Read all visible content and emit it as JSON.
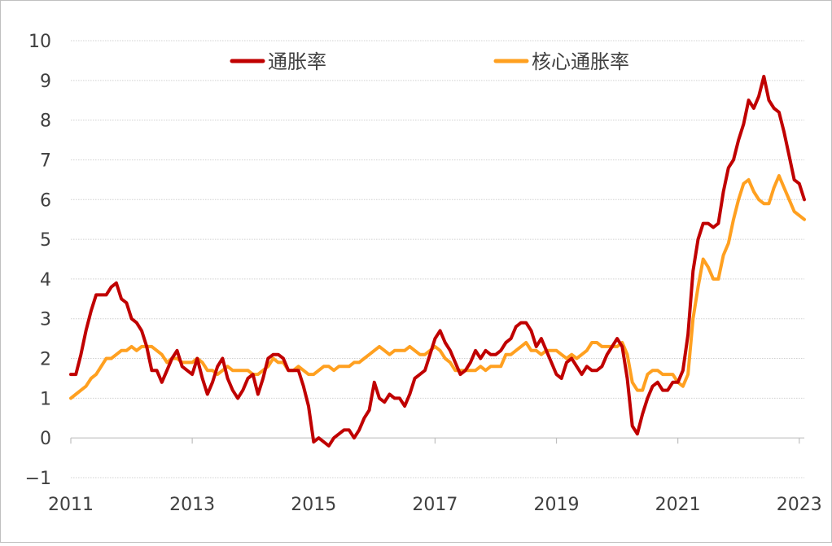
{
  "chart_data": {
    "type": "line",
    "x_ticks": [
      "2011",
      "2013",
      "2015",
      "2017",
      "2019",
      "2021",
      "2023"
    ],
    "y_ticks": [
      "−1",
      "0",
      "1",
      "2",
      "3",
      "4",
      "5",
      "6",
      "7",
      "8",
      "9",
      "10"
    ],
    "ylim": [
      -1,
      10
    ],
    "grid": "horizontal",
    "legend_position": "top",
    "series": [
      {
        "name": "通胀率",
        "color": "#c00000",
        "values": [
          1.6,
          1.6,
          2.1,
          2.7,
          3.2,
          3.6,
          3.6,
          3.6,
          3.8,
          3.9,
          3.5,
          3.4,
          3.0,
          2.9,
          2.7,
          2.3,
          1.7,
          1.7,
          1.4,
          1.7,
          2.0,
          2.2,
          1.8,
          1.7,
          1.6,
          2.0,
          1.5,
          1.1,
          1.4,
          1.8,
          2.0,
          1.5,
          1.2,
          1.0,
          1.2,
          1.5,
          1.6,
          1.1,
          1.5,
          2.0,
          2.1,
          2.1,
          2.0,
          1.7,
          1.7,
          1.7,
          1.3,
          0.8,
          -0.1,
          0.0,
          -0.1,
          -0.2,
          0.0,
          0.1,
          0.2,
          0.2,
          0.0,
          0.2,
          0.5,
          0.7,
          1.4,
          1.0,
          0.9,
          1.1,
          1.0,
          1.0,
          0.8,
          1.1,
          1.5,
          1.6,
          1.7,
          2.1,
          2.5,
          2.7,
          2.4,
          2.2,
          1.9,
          1.6,
          1.7,
          1.9,
          2.2,
          2.0,
          2.2,
          2.1,
          2.1,
          2.2,
          2.4,
          2.5,
          2.8,
          2.9,
          2.9,
          2.7,
          2.3,
          2.5,
          2.2,
          1.9,
          1.6,
          1.5,
          1.9,
          2.0,
          1.8,
          1.6,
          1.8,
          1.7,
          1.7,
          1.8,
          2.1,
          2.3,
          2.5,
          2.3,
          1.5,
          0.3,
          0.1,
          0.6,
          1.0,
          1.3,
          1.4,
          1.2,
          1.2,
          1.4,
          1.4,
          1.7,
          2.6,
          4.2,
          5.0,
          5.4,
          5.4,
          5.3,
          5.4,
          6.2,
          6.8,
          7.0,
          7.5,
          7.9,
          8.5,
          8.3,
          8.6,
          9.1,
          8.5,
          8.3,
          8.2,
          7.7,
          7.1,
          6.5,
          6.4,
          6.0
        ],
        "label": "通胀率"
      },
      {
        "name": "核心通胀率",
        "color": "#ffa020",
        "values": [
          1.0,
          1.1,
          1.2,
          1.3,
          1.5,
          1.6,
          1.8,
          2.0,
          2.0,
          2.1,
          2.2,
          2.2,
          2.3,
          2.2,
          2.3,
          2.3,
          2.3,
          2.2,
          2.1,
          1.9,
          2.0,
          2.0,
          1.9,
          1.9,
          1.9,
          2.0,
          1.9,
          1.7,
          1.7,
          1.6,
          1.7,
          1.8,
          1.7,
          1.7,
          1.7,
          1.7,
          1.6,
          1.6,
          1.7,
          1.8,
          2.0,
          1.9,
          1.9,
          1.7,
          1.7,
          1.8,
          1.7,
          1.6,
          1.6,
          1.7,
          1.8,
          1.8,
          1.7,
          1.8,
          1.8,
          1.8,
          1.9,
          1.9,
          2.0,
          2.1,
          2.2,
          2.3,
          2.2,
          2.1,
          2.2,
          2.2,
          2.2,
          2.3,
          2.2,
          2.1,
          2.1,
          2.2,
          2.3,
          2.2,
          2.0,
          1.9,
          1.7,
          1.7,
          1.7,
          1.7,
          1.7,
          1.8,
          1.7,
          1.8,
          1.8,
          1.8,
          2.1,
          2.1,
          2.2,
          2.3,
          2.4,
          2.2,
          2.2,
          2.1,
          2.2,
          2.2,
          2.2,
          2.1,
          2.0,
          2.1,
          2.0,
          2.1,
          2.2,
          2.4,
          2.4,
          2.3,
          2.3,
          2.3,
          2.3,
          2.4,
          2.1,
          1.4,
          1.2,
          1.2,
          1.6,
          1.7,
          1.7,
          1.6,
          1.6,
          1.6,
          1.4,
          1.3,
          1.6,
          3.0,
          3.8,
          4.5,
          4.3,
          4.0,
          4.0,
          4.6,
          4.9,
          5.5,
          6.0,
          6.4,
          6.5,
          6.2,
          6.0,
          5.9,
          5.9,
          6.3,
          6.6,
          6.3,
          6.0,
          5.7,
          5.6,
          5.5
        ],
        "label": "核心通胀率"
      }
    ]
  }
}
